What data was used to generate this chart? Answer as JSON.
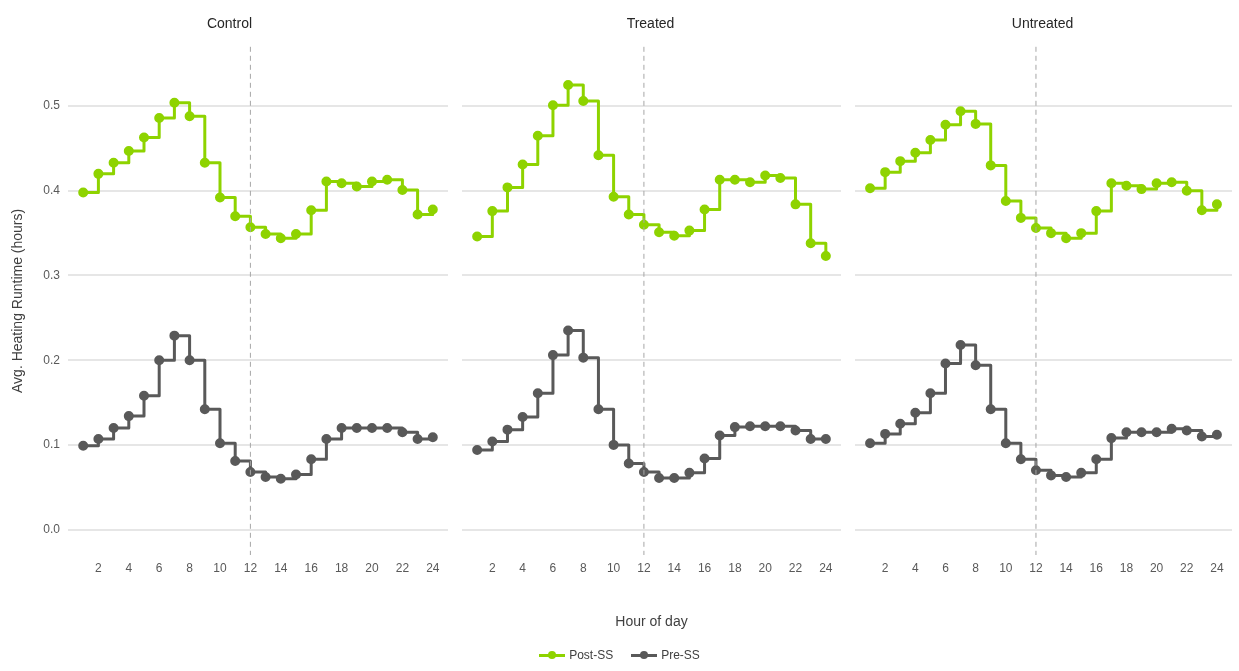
{
  "chart_data": [
    {
      "type": "step",
      "title": "Control",
      "ylabel": "Avg. Heating Runtime (hours)",
      "x": [
        1,
        2,
        3,
        4,
        5,
        6,
        7,
        8,
        9,
        10,
        11,
        12,
        13,
        14,
        15,
        16,
        17,
        18,
        19,
        20,
        21,
        22,
        23,
        24
      ],
      "xlim": [
        0,
        25
      ],
      "xticks": [
        2,
        4,
        6,
        8,
        10,
        12,
        14,
        16,
        18,
        20,
        22,
        24
      ],
      "ylim": [
        -0.03,
        0.57
      ],
      "yticks": [
        {
          "value": 0,
          "label": "0.0"
        },
        0.1,
        0.2,
        0.3,
        0.4,
        0.5
      ],
      "grid": "y",
      "marker": "circle",
      "line_style": "solid",
      "legend": "bottom",
      "ref_lines": [
        {
          "axis": "x",
          "value": 12,
          "color": "#a6a6a6",
          "line_style": "dashed"
        }
      ],
      "series": [
        {
          "name": "Post-SS",
          "color": "#8ed300",
          "values": [
            0.398,
            0.42,
            0.433,
            0.447,
            0.463,
            0.486,
            0.504,
            0.488,
            0.433,
            0.392,
            0.37,
            0.357,
            0.349,
            0.344,
            0.349,
            0.377,
            0.411,
            0.409,
            0.405,
            0.411,
            0.413,
            0.401,
            0.372,
            0.378
          ]
        },
        {
          "name": "Pre-SS",
          "color": "#595959",
          "values": [
            0.099,
            0.107,
            0.12,
            0.134,
            0.158,
            0.2,
            0.229,
            0.2,
            0.142,
            0.102,
            0.081,
            0.068,
            0.062,
            0.06,
            0.065,
            0.083,
            0.107,
            0.12,
            0.12,
            0.12,
            0.12,
            0.115,
            0.107,
            0.109
          ]
        }
      ]
    },
    {
      "type": "step",
      "title": "Treated",
      "xlabel": "Hour of day",
      "x": [
        1,
        2,
        3,
        4,
        5,
        6,
        7,
        8,
        9,
        10,
        11,
        12,
        13,
        14,
        15,
        16,
        17,
        18,
        19,
        20,
        21,
        22,
        23,
        24
      ],
      "xlim": [
        0,
        25
      ],
      "xticks": [
        2,
        4,
        6,
        8,
        10,
        12,
        14,
        16,
        18,
        20,
        22,
        24
      ],
      "ylim": [
        -0.03,
        0.57
      ],
      "yticks": [
        0,
        0.1,
        0.2,
        0.3,
        0.4,
        0.5
      ],
      "tick_labels": "x",
      "grid": "y",
      "marker": "circle",
      "line_style": "solid",
      "ref_lines": [
        {
          "axis": "x",
          "value": 12,
          "color": "#a6a6a6",
          "line_style": "dashed"
        }
      ],
      "series": [
        {
          "color": "#8ed300",
          "values": [
            0.346,
            0.376,
            0.404,
            0.431,
            0.465,
            0.501,
            0.525,
            0.506,
            0.442,
            0.393,
            0.372,
            0.36,
            0.351,
            0.347,
            0.353,
            0.378,
            0.413,
            0.413,
            0.41,
            0.418,
            0.415,
            0.384,
            0.338,
            0.323
          ]
        },
        {
          "color": "#595959",
          "values": [
            0.094,
            0.104,
            0.118,
            0.133,
            0.161,
            0.206,
            0.235,
            0.203,
            0.142,
            0.1,
            0.078,
            0.068,
            0.061,
            0.061,
            0.067,
            0.084,
            0.111,
            0.121,
            0.122,
            0.122,
            0.122,
            0.117,
            0.107,
            0.107
          ]
        }
      ]
    },
    {
      "type": "step",
      "title": "Untreated",
      "x": [
        1,
        2,
        3,
        4,
        5,
        6,
        7,
        8,
        9,
        10,
        11,
        12,
        13,
        14,
        15,
        16,
        17,
        18,
        19,
        20,
        21,
        22,
        23,
        24
      ],
      "xlim": [
        0,
        25
      ],
      "xticks": [
        2,
        4,
        6,
        8,
        10,
        12,
        14,
        16,
        18,
        20,
        22,
        24
      ],
      "ylim": [
        -0.03,
        0.57
      ],
      "yticks": [
        0,
        0.1,
        0.2,
        0.3,
        0.4,
        0.5
      ],
      "tick_labels": "x",
      "grid": "y",
      "marker": "circle",
      "line_style": "solid",
      "ref_lines": [
        {
          "axis": "x",
          "value": 12,
          "color": "#a6a6a6",
          "line_style": "dashed"
        }
      ],
      "series": [
        {
          "color": "#8ed300",
          "values": [
            0.403,
            0.422,
            0.435,
            0.445,
            0.46,
            0.478,
            0.494,
            0.479,
            0.43,
            0.388,
            0.368,
            0.356,
            0.35,
            0.344,
            0.35,
            0.376,
            0.409,
            0.406,
            0.402,
            0.409,
            0.41,
            0.4,
            0.377,
            0.384
          ]
        },
        {
          "color": "#595959",
          "values": [
            0.102,
            0.113,
            0.125,
            0.138,
            0.161,
            0.196,
            0.218,
            0.194,
            0.142,
            0.102,
            0.083,
            0.07,
            0.064,
            0.062,
            0.067,
            0.083,
            0.108,
            0.115,
            0.115,
            0.115,
            0.119,
            0.117,
            0.11,
            0.112
          ]
        }
      ]
    }
  ]
}
